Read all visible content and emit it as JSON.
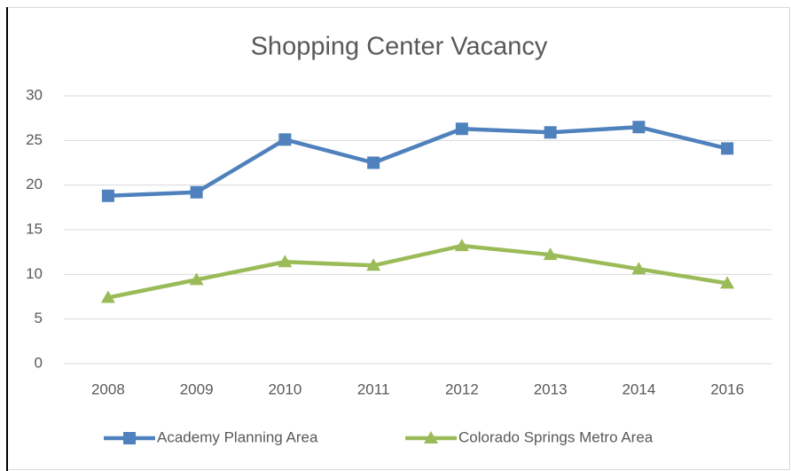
{
  "chart_data": {
    "type": "line",
    "title": "Shopping Center Vacancy",
    "categories": [
      "2008",
      "2009",
      "2010",
      "2011",
      "2012",
      "2013",
      "2014",
      "2016"
    ],
    "series": [
      {
        "name": "Academy Planning Area",
        "color": "#4f81bd",
        "marker": "square",
        "values": [
          18.8,
          19.2,
          25.1,
          22.5,
          26.3,
          25.9,
          26.5,
          24.1
        ]
      },
      {
        "name": "Colorado Springs Metro Area",
        "color": "#9bbb59",
        "marker": "triangle",
        "values": [
          7.4,
          9.4,
          11.4,
          11.0,
          13.2,
          12.2,
          10.6,
          9.0
        ]
      }
    ],
    "ylim": [
      0,
      30
    ],
    "yticks": [
      0,
      5,
      10,
      15,
      20,
      25,
      30
    ],
    "grid": true,
    "legend": "bottom"
  }
}
